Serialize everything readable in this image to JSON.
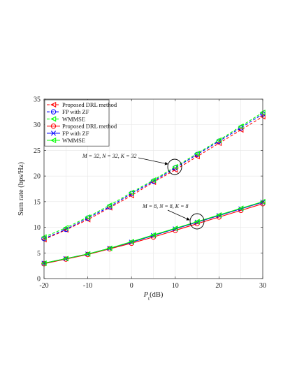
{
  "chart_data": {
    "type": "line",
    "xlabel": "P_t(dB)",
    "ylabel": "Sum rate (bps/Hz)",
    "xlim": [
      -20,
      30
    ],
    "ylim": [
      0,
      35
    ],
    "x_ticks": [
      -20,
      -10,
      0,
      10,
      20,
      30
    ],
    "y_ticks": [
      0,
      5,
      10,
      15,
      20,
      25,
      30,
      35
    ],
    "grid": true,
    "legend_position": "top-left",
    "x": [
      -20,
      -15,
      -10,
      -5,
      0,
      5,
      10,
      15,
      20,
      25,
      30
    ],
    "series": [
      {
        "name": "Proposed DRL method",
        "color": "#ff0000",
        "dashed": true,
        "marker": "triangle-left",
        "values": [
          7.6,
          9.5,
          11.5,
          13.8,
          16.2,
          18.8,
          21.2,
          23.8,
          26.4,
          29.0,
          31.6
        ]
      },
      {
        "name": "FP with ZF",
        "color": "#0000ff",
        "dashed": true,
        "marker": "circle",
        "values": [
          7.8,
          9.6,
          11.8,
          14.0,
          16.6,
          19.0,
          21.6,
          24.2,
          26.8,
          29.4,
          32.1
        ]
      },
      {
        "name": "WMMSE",
        "color": "#00ff00",
        "dashed": true,
        "marker": "triangle-left",
        "values": [
          8.1,
          9.9,
          12.0,
          14.3,
          16.8,
          19.2,
          21.8,
          24.4,
          27.0,
          29.7,
          32.4
        ]
      },
      {
        "name": "Proposed DRL method",
        "color": "#ff0000",
        "dashed": false,
        "marker": "circle",
        "values": [
          2.9,
          3.8,
          4.7,
          5.8,
          6.9,
          8.1,
          9.4,
          10.7,
          12.0,
          13.3,
          14.6
        ]
      },
      {
        "name": "FP with ZF",
        "color": "#0000ff",
        "dashed": false,
        "marker": "x",
        "values": [
          3.0,
          3.9,
          4.8,
          5.9,
          7.1,
          8.4,
          9.7,
          11.0,
          12.3,
          13.6,
          14.9
        ]
      },
      {
        "name": "WMMSE",
        "color": "#00ff00",
        "dashed": false,
        "marker": "triangle-left",
        "values": [
          3.0,
          3.9,
          4.8,
          5.9,
          7.2,
          8.5,
          9.8,
          11.1,
          12.4,
          13.7,
          15.0
        ]
      }
    ],
    "annotations": [
      {
        "text": "M = 32, N = 32, K = 32",
        "x": 10,
        "y": 21.5
      },
      {
        "text": "M = 8, N = 8, K = 8",
        "x": 15,
        "y": 11
      }
    ]
  }
}
